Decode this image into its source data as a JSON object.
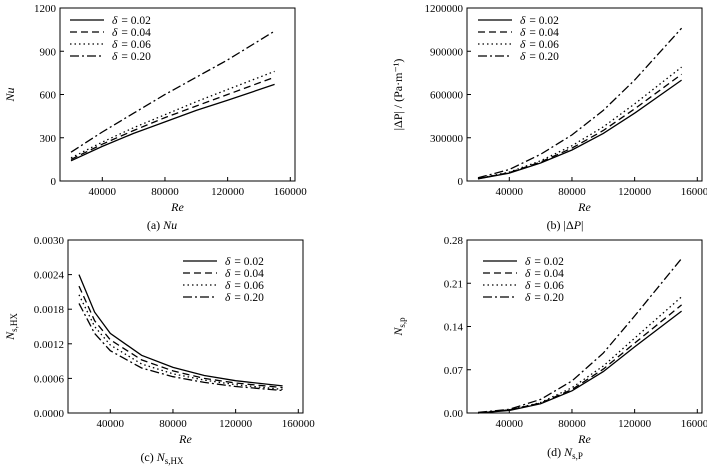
{
  "figure": {
    "legend_symbol": "δ",
    "styles": [
      "solid",
      "dash",
      "dot",
      "dashdot"
    ]
  },
  "chart_data": [
    {
      "type": "line",
      "caption_prefix": "(a) ",
      "caption_var": "Nu",
      "caption_sub": "",
      "caption_suffix": "",
      "xlabel": "Re",
      "ylabel": "Nu",
      "ylabel_sub": "",
      "xlim": [
        13000,
        163000
      ],
      "ylim": [
        0,
        1200
      ],
      "xticks": [
        40000,
        80000,
        120000,
        160000
      ],
      "xtick_labels": [
        "40000",
        "80000",
        "120000",
        "160000"
      ],
      "yticks": [
        0,
        300,
        600,
        900,
        1200
      ],
      "ytick_labels": [
        "0",
        "300",
        "600",
        "900",
        "1200"
      ],
      "legend_position": "top-left",
      "series": [
        {
          "name": "= 0.02",
          "x": [
            20000,
            40000,
            60000,
            80000,
            100000,
            120000,
            150000
          ],
          "y": [
            140,
            240,
            330,
            410,
            490,
            560,
            670
          ]
        },
        {
          "name": "= 0.04",
          "x": [
            20000,
            40000,
            60000,
            80000,
            100000,
            120000,
            150000
          ],
          "y": [
            150,
            255,
            350,
            440,
            520,
            600,
            720
          ]
        },
        {
          "name": "= 0.06",
          "x": [
            20000,
            40000,
            60000,
            80000,
            100000,
            120000,
            150000
          ],
          "y": [
            160,
            270,
            370,
            460,
            550,
            635,
            760
          ]
        },
        {
          "name": "= 0.20",
          "x": [
            20000,
            40000,
            60000,
            80000,
            100000,
            120000,
            150000
          ],
          "y": [
            200,
            340,
            470,
            600,
            720,
            840,
            1040
          ]
        }
      ]
    },
    {
      "type": "line",
      "caption_prefix": "(b) |Δ",
      "caption_var": "P",
      "caption_sub": "",
      "caption_suffix": "|",
      "xlabel": "Re",
      "ylabel": "|ΔP| / (Pa·m⁻¹)",
      "ylabel_sub": "",
      "xlim": [
        13000,
        163000
      ],
      "ylim": [
        0,
        1200000
      ],
      "xticks": [
        40000,
        80000,
        120000,
        160000
      ],
      "xtick_labels": [
        "40000",
        "80000",
        "120000",
        "160000"
      ],
      "yticks": [
        0,
        300000,
        600000,
        900000,
        1200000
      ],
      "ytick_labels": [
        "0",
        "300000",
        "600000",
        "900000",
        "1200000"
      ],
      "legend_position": "top-left",
      "series": [
        {
          "name": "= 0.02",
          "x": [
            20000,
            40000,
            60000,
            80000,
            100000,
            120000,
            150000
          ],
          "y": [
            15000,
            55000,
            125000,
            215000,
            330000,
            470000,
            700000
          ]
        },
        {
          "name": "= 0.04",
          "x": [
            20000,
            40000,
            60000,
            80000,
            100000,
            120000,
            150000
          ],
          "y": [
            16000,
            58000,
            132000,
            228000,
            350000,
            500000,
            740000
          ]
        },
        {
          "name": "= 0.06",
          "x": [
            20000,
            40000,
            60000,
            80000,
            100000,
            120000,
            150000
          ],
          "y": [
            17000,
            62000,
            140000,
            245000,
            375000,
            535000,
            790000
          ]
        },
        {
          "name": "= 0.20",
          "x": [
            20000,
            40000,
            60000,
            80000,
            100000,
            120000,
            150000
          ],
          "y": [
            22000,
            80000,
            185000,
            320000,
            490000,
            700000,
            1060000
          ]
        }
      ]
    },
    {
      "type": "line",
      "caption_prefix": "(c) ",
      "caption_var": "N",
      "caption_sub": "s,HX",
      "caption_suffix": "",
      "xlabel": "Re",
      "ylabel": "N",
      "ylabel_sub": "s,HX",
      "xlim": [
        13000,
        163000
      ],
      "ylim": [
        0,
        0.003
      ],
      "xticks": [
        40000,
        80000,
        120000,
        160000
      ],
      "xtick_labels": [
        "40000",
        "80000",
        "120000",
        "160000"
      ],
      "yticks": [
        0,
        0.0006,
        0.0012,
        0.0018,
        0.0024,
        0.003
      ],
      "ytick_labels": [
        "0.0000",
        "0.0006",
        "0.0012",
        "0.0018",
        "0.0024",
        "0.0030"
      ],
      "legend_position": "top-right",
      "series": [
        {
          "name": "= 0.02",
          "x": [
            20000,
            30000,
            40000,
            60000,
            80000,
            100000,
            120000,
            150000
          ],
          "y": [
            0.0024,
            0.00175,
            0.00138,
            0.001,
            0.00079,
            0.00065,
            0.00056,
            0.00047
          ]
        },
        {
          "name": "= 0.04",
          "x": [
            20000,
            30000,
            40000,
            60000,
            80000,
            100000,
            120000,
            150000
          ],
          "y": [
            0.0022,
            0.0016,
            0.00127,
            0.00092,
            0.00073,
            0.0006,
            0.00052,
            0.00044
          ]
        },
        {
          "name": "= 0.06",
          "x": [
            20000,
            30000,
            40000,
            60000,
            80000,
            100000,
            120000,
            150000
          ],
          "y": [
            0.00205,
            0.0015,
            0.00118,
            0.00085,
            0.00068,
            0.00057,
            0.00049,
            0.00041
          ]
        },
        {
          "name": "= 0.20",
          "x": [
            20000,
            30000,
            40000,
            60000,
            80000,
            100000,
            120000,
            150000
          ],
          "y": [
            0.0019,
            0.00138,
            0.00108,
            0.00078,
            0.00063,
            0.00053,
            0.00046,
            0.00039
          ]
        }
      ]
    },
    {
      "type": "line",
      "caption_prefix": "(d) ",
      "caption_var": "N",
      "caption_sub": "s,P",
      "caption_suffix": "",
      "xlabel": "Re",
      "ylabel": "N",
      "ylabel_sub": "s,p",
      "xlim": [
        13000,
        163000
      ],
      "ylim": [
        0,
        0.28
      ],
      "xticks": [
        40000,
        80000,
        120000,
        160000
      ],
      "xtick_labels": [
        "40000",
        "80000",
        "120000",
        "160000"
      ],
      "yticks": [
        0,
        0.07,
        0.14,
        0.21,
        0.28
      ],
      "ytick_labels": [
        "0.00",
        "0.07",
        "0.14",
        "0.21",
        "0.28"
      ],
      "legend_position": "top-right",
      "series": [
        {
          "name": "= 0.02",
          "x": [
            20000,
            40000,
            60000,
            80000,
            100000,
            120000,
            150000
          ],
          "y": [
            0.0,
            0.004,
            0.015,
            0.036,
            0.067,
            0.107,
            0.165
          ]
        },
        {
          "name": "= 0.04",
          "x": [
            20000,
            40000,
            60000,
            80000,
            100000,
            120000,
            150000
          ],
          "y": [
            0.0,
            0.005,
            0.016,
            0.038,
            0.071,
            0.113,
            0.175
          ]
        },
        {
          "name": "= 0.06",
          "x": [
            20000,
            40000,
            60000,
            80000,
            100000,
            120000,
            150000
          ],
          "y": [
            0.0,
            0.005,
            0.017,
            0.041,
            0.076,
            0.121,
            0.188
          ]
        },
        {
          "name": "= 0.20",
          "x": [
            20000,
            40000,
            60000,
            80000,
            100000,
            120000,
            150000
          ],
          "y": [
            0.001,
            0.006,
            0.022,
            0.052,
            0.097,
            0.157,
            0.25
          ]
        }
      ]
    }
  ]
}
